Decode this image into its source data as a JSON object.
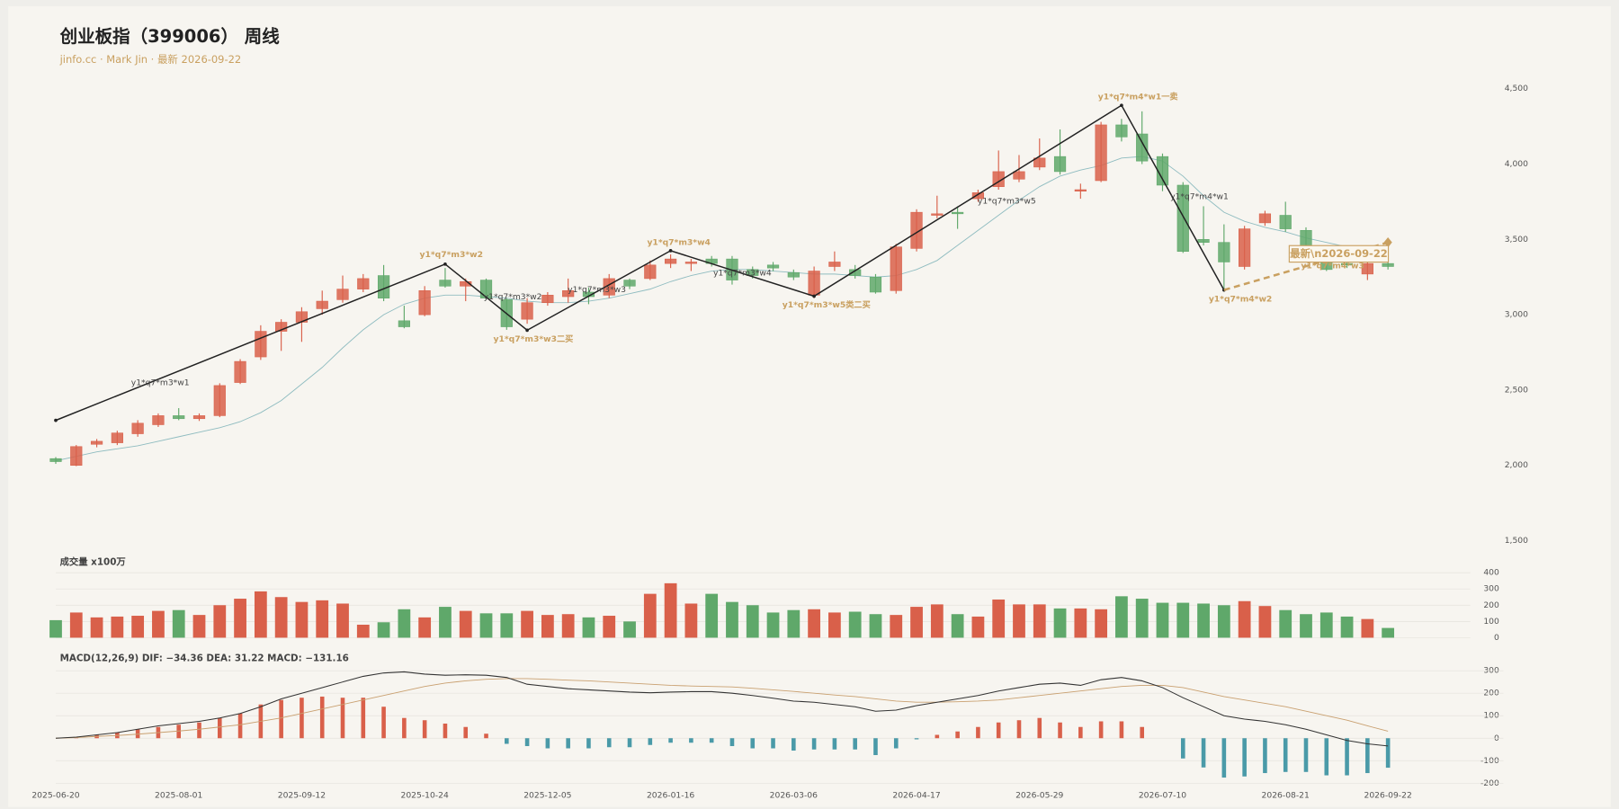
{
  "chart_data": [
    {
      "type": "candlestick",
      "title": "创业板指（399006） 周线",
      "subtitle": "jinfo.cc · Mark Jin · 最新 2026-09-22",
      "categories": [
        "2025-06-20",
        null,
        null,
        null,
        null,
        null,
        "2025-08-01",
        null,
        null,
        null,
        null,
        null,
        "2025-09-12",
        null,
        null,
        null,
        null,
        null,
        "2025-10-24",
        null,
        null,
        null,
        null,
        null,
        "2025-12-05",
        null,
        null,
        null,
        null,
        null,
        "2026-01-16",
        null,
        null,
        null,
        null,
        null,
        "2026-03-06",
        null,
        null,
        null,
        null,
        null,
        "2026-04-17",
        null,
        null,
        null,
        null,
        null,
        "2026-05-29",
        null,
        null,
        null,
        null,
        null,
        "2026-07-10",
        null,
        null,
        null,
        null,
        null,
        "2026-08-21",
        null,
        null,
        null,
        null,
        "2026-09-22"
      ],
      "open": [
        2045,
        2000,
        2140,
        2150,
        2210,
        2270,
        2330,
        2310,
        2330,
        2550,
        2720,
        2890,
        2950,
        3040,
        3100,
        3170,
        3260,
        2960,
        3000,
        3230,
        3190,
        3230,
        3100,
        2970,
        3080,
        3120,
        3150,
        3130,
        3230,
        3240,
        3340,
        3340,
        3370,
        3370,
        3300,
        3330,
        3280,
        3130,
        3320,
        3300,
        3250,
        3160,
        3440,
        3660,
        3680,
        3770,
        3850,
        3900,
        3980,
        4050,
        3820,
        3890,
        4260,
        4200,
        4050,
        3860,
        3500,
        3480,
        3320,
        3610,
        3660,
        3560,
        3360,
        3340,
        3270,
        3340
      ],
      "high": [
        2055,
        2135,
        2175,
        2230,
        2300,
        2345,
        2380,
        2345,
        2545,
        2705,
        2930,
        2970,
        3050,
        3160,
        3260,
        3270,
        3330,
        3060,
        3190,
        3310,
        3240,
        3240,
        3110,
        3110,
        3150,
        3240,
        3180,
        3270,
        3240,
        3360,
        3400,
        3370,
        3390,
        3390,
        3320,
        3350,
        3300,
        3320,
        3420,
        3330,
        3270,
        3470,
        3700,
        3790,
        3720,
        3830,
        4090,
        4060,
        4170,
        4230,
        3870,
        4280,
        4300,
        4350,
        4070,
        3880,
        3720,
        3600,
        3590,
        3690,
        3750,
        3580,
        3380,
        3360,
        3360,
        3400
      ],
      "low": [
        2010,
        1995,
        2120,
        2135,
        2190,
        2255,
        2300,
        2295,
        2320,
        2540,
        2700,
        2760,
        2820,
        3000,
        3080,
        3150,
        3090,
        2910,
        2990,
        3180,
        3090,
        3100,
        2900,
        2940,
        3060,
        3080,
        3070,
        3110,
        3170,
        3230,
        3310,
        3290,
        3320,
        3200,
        3240,
        3290,
        3230,
        3110,
        3290,
        3240,
        3140,
        3140,
        3420,
        3640,
        3570,
        3750,
        3830,
        3880,
        3960,
        3930,
        3770,
        3880,
        4150,
        4000,
        3820,
        3410,
        3460,
        3170,
        3300,
        3590,
        3550,
        3440,
        3290,
        3310,
        3230,
        3300
      ],
      "close": [
        2025,
        2125,
        2160,
        2215,
        2280,
        2330,
        2310,
        2330,
        2530,
        2690,
        2890,
        2950,
        3020,
        3090,
        3170,
        3240,
        3110,
        2920,
        3160,
        3190,
        3220,
        3110,
        2920,
        3080,
        3130,
        3160,
        3120,
        3240,
        3190,
        3330,
        3370,
        3350,
        3340,
        3230,
        3260,
        3310,
        3250,
        3290,
        3350,
        3260,
        3150,
        3450,
        3680,
        3670,
        3670,
        3810,
        3950,
        3950,
        4040,
        3950,
        3830,
        4260,
        4180,
        4020,
        3860,
        3420,
        3480,
        3350,
        3570,
        3670,
        3570,
        3460,
        3300,
        3330,
        3340,
        3320
      ],
      "up_color": "#d9604a",
      "down_color": "#5fa86a",
      "ylim": [
        1500,
        4600
      ],
      "yticks": [
        {
          "value": 1500,
          "label": "1,500"
        },
        {
          "value": 2000,
          "label": "2,000"
        },
        {
          "value": 2500,
          "label": "2,500"
        },
        {
          "value": 3000,
          "label": "3,000"
        },
        {
          "value": 3500,
          "label": "3,500"
        },
        {
          "value": 4000,
          "label": "4,000"
        },
        {
          "value": 4500,
          "label": "4,500"
        }
      ],
      "grid": false,
      "ma": {
        "color": "#8fbcc0",
        "values": [
          2030,
          2060,
          2090,
          2110,
          2130,
          2160,
          2190,
          2220,
          2250,
          2290,
          2350,
          2430,
          2540,
          2650,
          2780,
          2900,
          3000,
          3070,
          3110,
          3130,
          3130,
          3120,
          3110,
          3090,
          3080,
          3080,
          3090,
          3110,
          3140,
          3170,
          3220,
          3260,
          3290,
          3300,
          3300,
          3290,
          3280,
          3270,
          3270,
          3260,
          3250,
          3260,
          3300,
          3360,
          3460,
          3560,
          3660,
          3760,
          3850,
          3920,
          3960,
          3990,
          4040,
          4050,
          4020,
          3920,
          3790,
          3680,
          3620,
          3580,
          3550,
          3510,
          3480,
          3450,
          3430,
          3400
        ]
      },
      "waves": [
        {
          "color": "#222222",
          "dashed": false,
          "x": [
            0,
            19,
            23,
            30,
            37,
            52,
            57
          ],
          "values": [
            2299,
            3336,
            2897,
            3425,
            3123,
            4390,
            3164
          ]
        },
        {
          "color": "#c9a060",
          "dashed": true,
          "x": [
            57,
            65
          ],
          "values": [
            3164,
            3480
          ]
        }
      ],
      "annotations": [
        {
          "text": "y1*q7*m3*w1",
          "x": 5.1,
          "y": 2548,
          "color": "#444444"
        },
        {
          "text": "y1*q7*m3*w2",
          "x": 19.3,
          "y": 3397,
          "color": "#c9a060"
        },
        {
          "text": "y1*q7*m3*w2",
          "x": 22.3,
          "y": 3116,
          "color": "#444444"
        },
        {
          "text": "y1*q7*m3*w3二买",
          "x": 23.3,
          "y": 2836,
          "color": "#c9a060"
        },
        {
          "text": "y1*q7*m3*w3",
          "x": 26.4,
          "y": 3164,
          "color": "#444444"
        },
        {
          "text": "y1*q7*m3*w4",
          "x": 30.4,
          "y": 3479,
          "color": "#c9a060"
        },
        {
          "text": "y1*q7*m3*w4",
          "x": 33.5,
          "y": 3274,
          "color": "#444444"
        },
        {
          "text": "y1*q7*m3*w5类二买",
          "x": 37.6,
          "y": 3062,
          "color": "#c9a060"
        },
        {
          "text": "y1*q7*m3*w5",
          "x": 46.4,
          "y": 3753,
          "color": "#444444"
        },
        {
          "text": "y1*q7*m4*w1一卖",
          "x": 52.8,
          "y": 4445,
          "color": "#c9a060"
        },
        {
          "text": "y1*q7*m4*w1",
          "x": 55.8,
          "y": 3781,
          "color": "#444444"
        },
        {
          "text": "y1*q7*m4*w2",
          "x": 57.8,
          "y": 3103,
          "color": "#c9a060"
        },
        {
          "text": "y1*q7*m4*w3",
          "x": 62.3,
          "y": 3322,
          "color": "#c9a060"
        }
      ],
      "latest_label": {
        "text": "最新\\n2026-09-22",
        "x": 62.6,
        "y": 3404,
        "color": "#c9a060"
      }
    },
    {
      "type": "bar",
      "title": "成交量 x100万",
      "values": [
        108,
        155,
        125,
        130,
        135,
        165,
        170,
        140,
        200,
        240,
        285,
        250,
        220,
        230,
        210,
        80,
        95,
        175,
        125,
        190,
        165,
        150,
        150,
        165,
        140,
        145,
        125,
        135,
        100,
        270,
        335,
        210,
        270,
        220,
        200,
        155,
        170,
        175,
        155,
        160,
        145,
        140,
        190,
        205,
        145,
        130,
        235,
        205,
        205,
        180,
        180,
        175,
        255,
        240,
        215,
        215,
        210,
        200,
        225,
        195,
        170,
        145,
        155,
        130,
        115,
        60
      ],
      "ylim": [
        0,
        400
      ],
      "yticks": [
        0,
        100,
        200,
        300,
        400
      ],
      "grid": true
    },
    {
      "type": "macd",
      "title": "MACD(12,26,9) DIF: −34.36 DEA: 31.22 MACD: −131.16",
      "histogram": {
        "up_color": "#d9604a",
        "down_color": "#4a9aa8",
        "values": [
          0,
          5,
          15,
          25,
          40,
          50,
          60,
          70,
          90,
          110,
          150,
          170,
          180,
          185,
          180,
          180,
          140,
          90,
          80,
          65,
          50,
          20,
          -25,
          -35,
          -45,
          -45,
          -45,
          -40,
          -40,
          -30,
          -20,
          -20,
          -20,
          -35,
          -45,
          -45,
          -55,
          -50,
          -50,
          -50,
          -75,
          -45,
          -5,
          15,
          30,
          50,
          70,
          80,
          90,
          70,
          50,
          75,
          75,
          50,
          0,
          -90,
          -130,
          -175,
          -170,
          -155,
          -150,
          -150,
          -165,
          -165,
          -155,
          -131.16
        ]
      },
      "dif": {
        "color": "#333333",
        "values": [
          0,
          5,
          15,
          25,
          40,
          55,
          65,
          75,
          90,
          110,
          140,
          175,
          200,
          225,
          250,
          275,
          290,
          295,
          285,
          280,
          282,
          280,
          270,
          240,
          230,
          220,
          215,
          210,
          205,
          202,
          205,
          207,
          207,
          200,
          190,
          178,
          165,
          160,
          150,
          140,
          120,
          125,
          145,
          160,
          175,
          190,
          210,
          225,
          240,
          245,
          235,
          260,
          270,
          255,
          225,
          180,
          140,
          100,
          85,
          75,
          60,
          40,
          15,
          -10,
          -25,
          -34.36
        ]
      },
      "dea": {
        "color": "#c9a070",
        "values": [
          0,
          3,
          8,
          12,
          18,
          25,
          32,
          40,
          50,
          60,
          75,
          90,
          110,
          130,
          150,
          170,
          190,
          210,
          230,
          245,
          255,
          262,
          265,
          265,
          262,
          258,
          255,
          250,
          245,
          240,
          235,
          232,
          230,
          228,
          222,
          215,
          208,
          200,
          192,
          185,
          175,
          165,
          160,
          160,
          162,
          165,
          170,
          180,
          190,
          200,
          210,
          220,
          230,
          235,
          235,
          225,
          205,
          185,
          170,
          155,
          140,
          120,
          100,
          80,
          55,
          31.22
        ]
      },
      "ylim": [
        -200,
        300
      ],
      "yticks": [
        -200,
        -100,
        0,
        100,
        200,
        300
      ],
      "grid": true
    }
  ]
}
